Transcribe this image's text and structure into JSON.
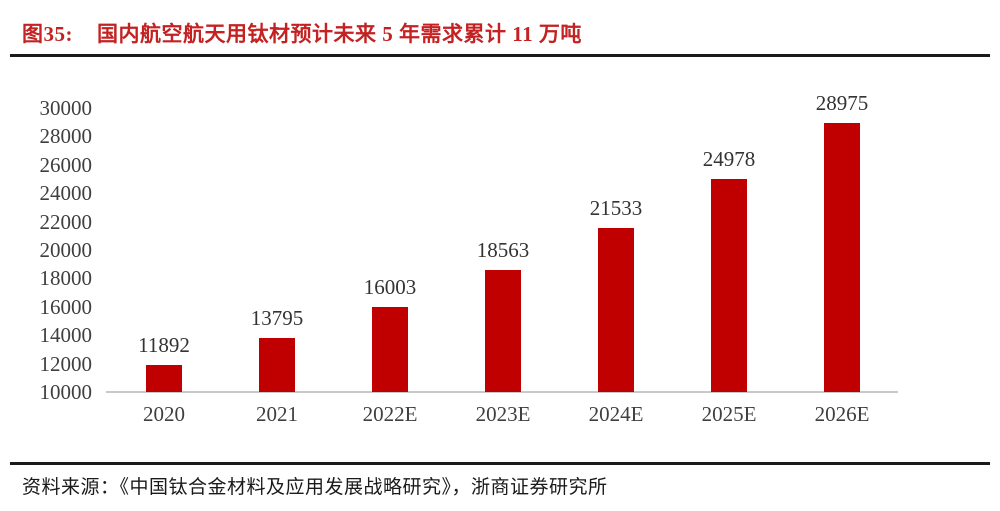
{
  "figure": {
    "label": "图35:",
    "title": "国内航空航天用钛材预计未来 5 年需求累计 11 万吨"
  },
  "source": "资料来源：《中国钛合金材料及应用发展战略研究》，浙商证券研究所",
  "colors": {
    "bar": "#C00000",
    "title_text": "#C42222",
    "axis_text": "#3F3F3F",
    "value_label_text": "#333333",
    "baseline": "#C9C9C9",
    "divider": "#1A1A1A"
  },
  "chart_data": {
    "type": "bar",
    "categories": [
      "2020",
      "2021",
      "2022E",
      "2023E",
      "2024E",
      "2025E",
      "2026E"
    ],
    "values": [
      11892,
      13795,
      16003,
      18563,
      21533,
      24978,
      28975
    ],
    "title": "国内航空航天用钛材预计未来 5 年需求累计 11 万吨",
    "xlabel": "",
    "ylabel": "",
    "ylim": [
      10000,
      30000
    ],
    "ytick_interval": 2000,
    "yticks": [
      10000,
      12000,
      14000,
      16000,
      18000,
      20000,
      22000,
      24000,
      26000,
      28000,
      30000
    ],
    "grid": false,
    "legend": "none",
    "data_labels": true
  }
}
